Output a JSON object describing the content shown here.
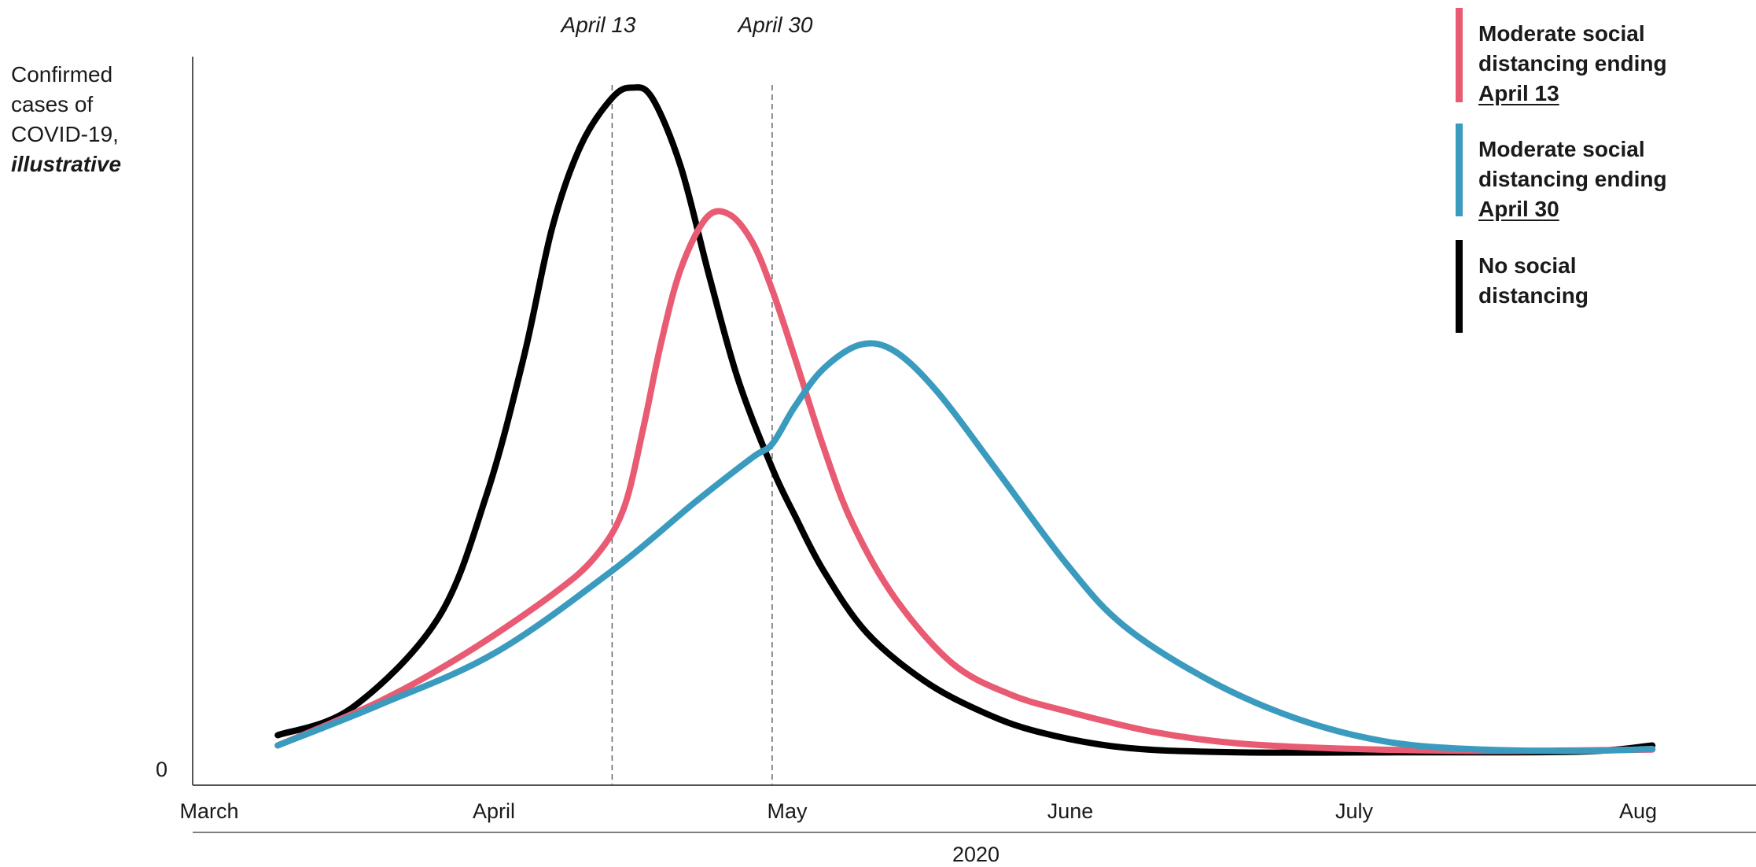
{
  "chart_data": {
    "type": "line",
    "ylabel": {
      "line1": "Confirmed",
      "line2": "cases of",
      "line3": "COVID-19,",
      "emphasis": "illustrative"
    },
    "y_zero_label": "0",
    "x_ticks": [
      "March",
      "April",
      "May",
      "June",
      "July",
      "Aug"
    ],
    "xlabel": "2020",
    "reference_lines": [
      {
        "label": "April 13",
        "x": 1.41
      },
      {
        "label": "April 30",
        "x": 1.97
      }
    ],
    "ylim": [
      0,
      100
    ],
    "legend_position": "top-right",
    "series": [
      {
        "key": "no_sd",
        "color": "#000000",
        "legend": {
          "line1": "No social",
          "line2": "distancing",
          "emphasis": ""
        },
        "points": [
          [
            0.24,
            5
          ],
          [
            0.5,
            9
          ],
          [
            0.8,
            22
          ],
          [
            0.97,
            40
          ],
          [
            1.1,
            60
          ],
          [
            1.2,
            79
          ],
          [
            1.3,
            91
          ],
          [
            1.41,
            98
          ],
          [
            1.48,
            99.5
          ],
          [
            1.55,
            98
          ],
          [
            1.65,
            88
          ],
          [
            1.75,
            72
          ],
          [
            1.85,
            57
          ],
          [
            1.97,
            44
          ],
          [
            2.05,
            37
          ],
          [
            2.15,
            29
          ],
          [
            2.3,
            20
          ],
          [
            2.5,
            13
          ],
          [
            2.7,
            8.5
          ],
          [
            2.9,
            5.5
          ],
          [
            3.2,
            3.2
          ],
          [
            3.6,
            2.5
          ],
          [
            4.2,
            2.5
          ],
          [
            4.8,
            2.6
          ],
          [
            5.05,
            3.5
          ]
        ]
      },
      {
        "key": "sd_apr13",
        "color": "#e85b72",
        "legend": {
          "line1": "Moderate social",
          "line2": "distancing ending",
          "emphasis": "April 13"
        },
        "points": [
          [
            0.24,
            3.5
          ],
          [
            0.6,
            10
          ],
          [
            0.9,
            17
          ],
          [
            1.2,
            25.5
          ],
          [
            1.35,
            31
          ],
          [
            1.45,
            38
          ],
          [
            1.52,
            50
          ],
          [
            1.58,
            62
          ],
          [
            1.65,
            73
          ],
          [
            1.74,
            80.5
          ],
          [
            1.82,
            81
          ],
          [
            1.9,
            77
          ],
          [
            1.97,
            70
          ],
          [
            2.05,
            60
          ],
          [
            2.15,
            47
          ],
          [
            2.25,
            36
          ],
          [
            2.4,
            25
          ],
          [
            2.6,
            15.5
          ],
          [
            2.8,
            11
          ],
          [
            3.0,
            8.5
          ],
          [
            3.3,
            5.5
          ],
          [
            3.6,
            3.8
          ],
          [
            4.0,
            3
          ],
          [
            4.5,
            2.7
          ],
          [
            5.05,
            2.9
          ]
        ]
      },
      {
        "key": "sd_apr30",
        "color": "#3b9bbf",
        "legend": {
          "line1": "Moderate social",
          "line2": "distancing ending",
          "emphasis": "April 30"
        },
        "points": [
          [
            0.24,
            3.5
          ],
          [
            0.6,
            9.5
          ],
          [
            1.0,
            17
          ],
          [
            1.41,
            29
          ],
          [
            1.7,
            39
          ],
          [
            1.9,
            45.5
          ],
          [
            1.97,
            47.5
          ],
          [
            2.05,
            53
          ],
          [
            2.15,
            58.5
          ],
          [
            2.28,
            62
          ],
          [
            2.4,
            61
          ],
          [
            2.55,
            55
          ],
          [
            2.75,
            44
          ],
          [
            3.0,
            30
          ],
          [
            3.2,
            21
          ],
          [
            3.5,
            13
          ],
          [
            3.8,
            7.5
          ],
          [
            4.1,
            4.2
          ],
          [
            4.4,
            3
          ],
          [
            4.8,
            2.7
          ],
          [
            5.05,
            3
          ]
        ]
      }
    ]
  }
}
